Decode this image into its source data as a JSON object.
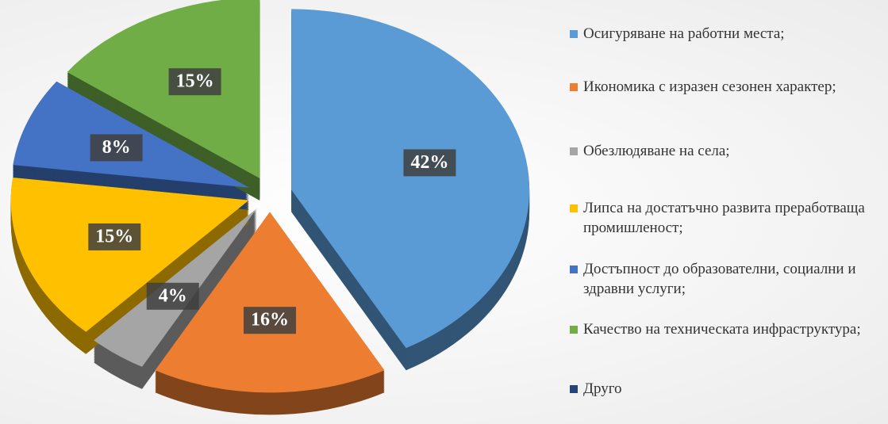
{
  "chart_data": {
    "type": "pie",
    "categories": [
      "Осигуряване на работни места;",
      "Икономика с изразен сезонен характер;",
      "Обезлюдяване на села;",
      "Липса на достатъчно развита преработваща промишленост;",
      "Достъпност до образователни, социални и здравни услуги;",
      "Качество на техническата инфраструктура;",
      "Друго"
    ],
    "values": [
      42,
      16,
      4,
      15,
      8,
      15,
      0
    ],
    "value_labels": [
      "42%",
      "16%",
      "4%",
      "15%",
      "8%",
      "15%",
      null
    ],
    "colors": [
      "#5b9bd5",
      "#ed7d31",
      "#a5a5a5",
      "#ffc000",
      "#4472c4",
      "#70ad47",
      "#264478"
    ],
    "legend": "right"
  }
}
